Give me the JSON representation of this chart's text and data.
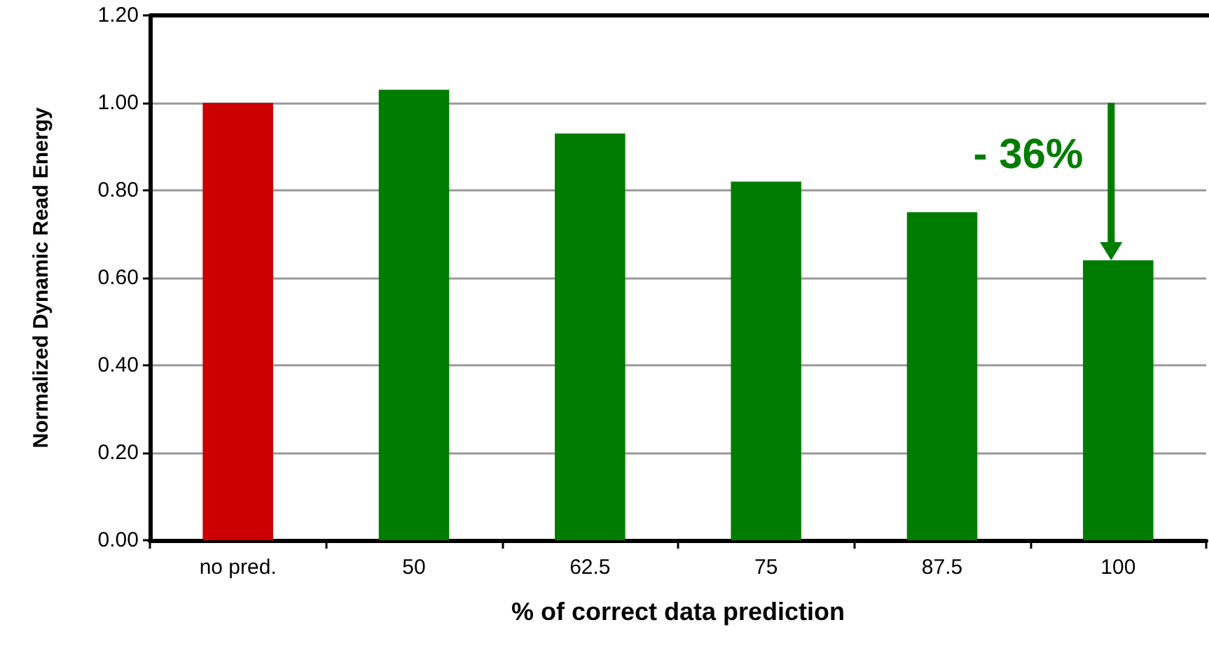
{
  "chart_data": {
    "type": "bar",
    "xlabel": "% of correct data prediction",
    "ylabel": "Normalized Dynamic Read Energy",
    "categories": [
      "no pred.",
      "50",
      "62.5",
      "75",
      "87.5",
      "100"
    ],
    "values": [
      1.0,
      1.03,
      0.93,
      0.82,
      0.75,
      0.64
    ],
    "colors": [
      "#cc0000",
      "#007d00",
      "#007d00",
      "#007d00",
      "#007d00",
      "#007d00"
    ],
    "ylim": [
      0,
      1.2
    ],
    "yticks": [
      {
        "value": 0,
        "label": "0.00"
      },
      {
        "value": 0.2,
        "label": "0.20"
      },
      {
        "value": 0.4,
        "label": "0.40"
      },
      {
        "value": 0.6,
        "label": "0.60"
      },
      {
        "value": 0.8,
        "label": "0.80"
      },
      {
        "value": 1.0,
        "label": "1.00"
      },
      {
        "value": 1.2,
        "label": "1.20"
      }
    ],
    "annotations": [
      {
        "text": "- 36%",
        "x": "100",
        "y": 0.64
      }
    ],
    "grid": "y"
  }
}
